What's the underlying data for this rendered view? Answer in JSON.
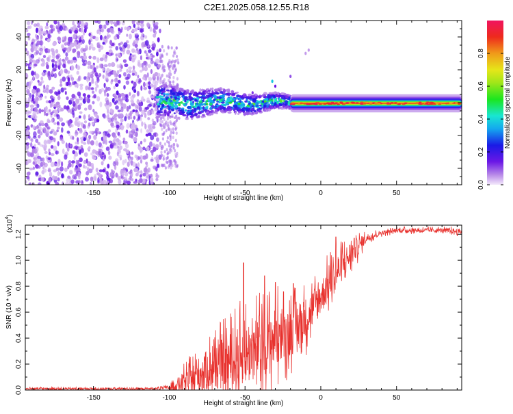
{
  "title": "C2E1.2025.058.12.55.R18",
  "colors": {
    "line": "#e8322e",
    "frame": "#000000"
  },
  "chart_data": [
    {
      "type": "heatmap",
      "name": "spectrogram",
      "xlabel": "Height of straight line (km)",
      "ylabel": "Frequency (Hz)",
      "xlim": [
        -195,
        93
      ],
      "ylim": [
        -50,
        50
      ],
      "xticks": [
        -150,
        -100,
        -50,
        0,
        50
      ],
      "yticks": [
        -40,
        -20,
        0,
        20,
        40
      ],
      "xtick_labels": [
        "-150",
        "-100",
        "-50",
        "0",
        "50"
      ],
      "ytick_labels": [
        "-40",
        "-20",
        "0",
        "20",
        "40"
      ],
      "description_bands": [
        {
          "x_range": [
            -195,
            -105
          ],
          "f_range": [
            -50,
            50
          ],
          "level": 0.05
        },
        {
          "x_range": [
            -105,
            -20
          ],
          "f_range": [
            -6,
            6
          ],
          "level": 0.35
        },
        {
          "x_range": [
            -20,
            93
          ],
          "f_range": [
            -3,
            2
          ],
          "level": 0.75
        }
      ]
    },
    {
      "type": "colorbar",
      "name": "amplitude-scale",
      "label": "Normalized spectral amplitude",
      "range": [
        0,
        1
      ],
      "ticks": [
        0.0,
        0.2,
        0.4,
        0.6,
        0.8
      ],
      "tick_labels": [
        "0.0",
        "0.2",
        "0.4",
        "0.6",
        "0.8"
      ]
    },
    {
      "type": "line",
      "name": "snr",
      "xlabel": "Height of straight line (km)",
      "ylabel": "SNR (10 * v/v)",
      "multiplier_label": "(x10",
      "multiplier_exp": "4",
      "multiplier_close": ")",
      "xlim": [
        -195,
        93
      ],
      "ylim": [
        0,
        1.27
      ],
      "xticks": [
        -150,
        -100,
        -50,
        0,
        50
      ],
      "yticks": [
        0.0,
        0.2,
        0.4,
        0.6,
        0.8,
        1.0,
        1.2
      ],
      "xtick_labels": [
        "-150",
        "-100",
        "-50",
        "0",
        "50"
      ],
      "ytick_labels": [
        "0.0",
        "0.2",
        "0.4",
        "0.6",
        "0.8",
        "1.0",
        "1.2"
      ],
      "envelope": {
        "x": [
          -195,
          -110,
          -100,
          -90,
          -80,
          -70,
          -60,
          -50,
          -40,
          -30,
          -20,
          -10,
          0,
          10,
          20,
          30,
          40,
          50,
          60,
          70,
          80,
          93
        ],
        "base": [
          0.01,
          0.01,
          0.02,
          0.06,
          0.12,
          0.18,
          0.22,
          0.28,
          0.33,
          0.4,
          0.45,
          0.55,
          0.72,
          0.9,
          1.05,
          1.17,
          1.21,
          1.23,
          1.23,
          1.23,
          1.23,
          1.22
        ],
        "spread": [
          0.015,
          0.015,
          0.03,
          0.15,
          0.25,
          0.32,
          0.4,
          0.45,
          0.45,
          0.42,
          0.35,
          0.3,
          0.25,
          0.25,
          0.18,
          0.06,
          0.03,
          0.03,
          0.03,
          0.03,
          0.03,
          0.04
        ]
      },
      "peaks": [
        {
          "x": -51,
          "y": 0.98
        },
        {
          "x": -37,
          "y": 0.88
        },
        {
          "x": -30,
          "y": 0.83
        },
        {
          "x": -27,
          "y": 0.5
        },
        {
          "x": -18,
          "y": 0.82
        },
        {
          "x": 10,
          "y": 1.18
        },
        {
          "x": 22,
          "y": 1.17
        }
      ]
    }
  ]
}
